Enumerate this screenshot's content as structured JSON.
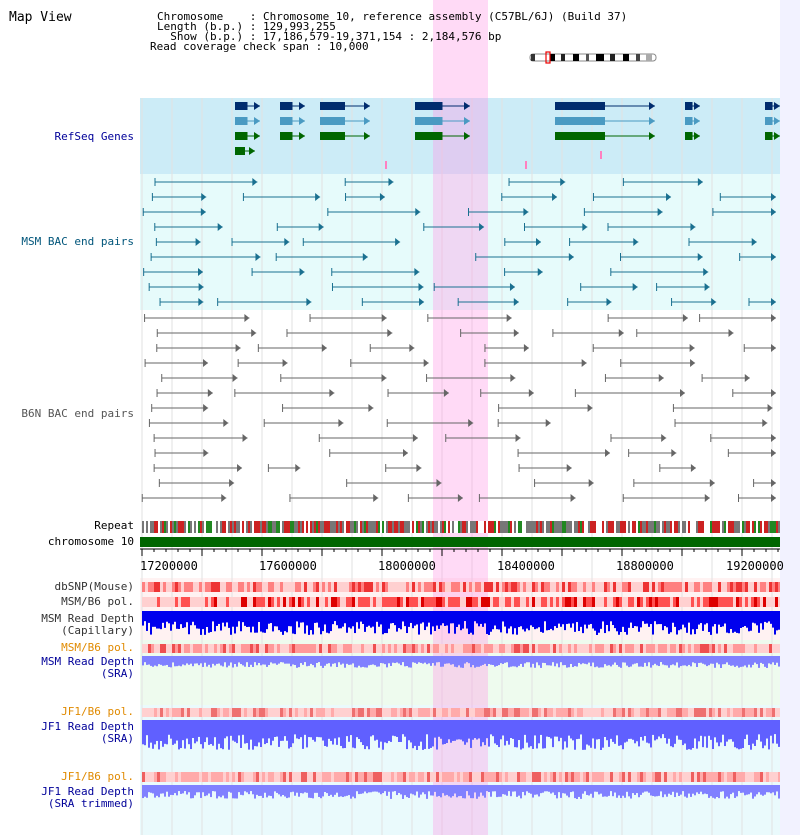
{
  "header": {
    "title": "Map View",
    "chromosome_label": "Chromosome",
    "chromosome_value": "Chromosome 10, reference assembly (C57BL/6J) (Build 37)",
    "length_label": "Length (b.p.)",
    "length_value": "129,993,255",
    "show_label": "Show (b.p.)",
    "show_value": "17,186,579-19,371,154 : 2,184,576 bp",
    "coverage_label": "Read coverage check span",
    "coverage_value": "10,000"
  },
  "tracks": {
    "refseq": "RefSeq Genes",
    "msm_bac": "MSM BAC end pairs",
    "b6n_bac": "B6N BAC end pairs",
    "repeat": "Repeat",
    "chromosome": "chromosome 10",
    "dbsnp": "dbSNP(Mouse)",
    "msm_b6_pol": "MSM/B6 pol.",
    "msm_read_depth_line1": "MSM Read Depth",
    "msm_read_depth_line2": "(Capillary)",
    "msm_b6_pol_sra": "MSM/B6 pol.",
    "msm_read_depth_sra_line1": "MSM Read Depth",
    "msm_read_depth_sra_line2": "(SRA)",
    "jf1_b6_pol": "JF1/B6 pol.",
    "jf1_read_depth_line1": "JF1 Read Depth",
    "jf1_read_depth_line2": "(SRA)",
    "jf1_b6_pol_trim": "JF1/B6 pol.",
    "jf1_read_depth_trim_line1": "JF1 Read Depth",
    "jf1_read_depth_trim_line2": "(SRA trimmed)"
  },
  "ruler": {
    "ticks": [
      "17200000",
      "17600000",
      "18000000",
      "18400000",
      "18800000",
      "19200000"
    ]
  },
  "colors": {
    "refseq_bg": "#ccecf7",
    "msm_bg": "#e8fbfb",
    "b6n_bg": "#ffffff",
    "highlight": "#ffb3ec",
    "msm_label": "#00557a",
    "refseq_label": "#000099",
    "b6n_label": "#555555",
    "orange_label": "#e08a00",
    "blue_label": "#000099",
    "chrom_bar": "#006600",
    "depth_dark": "#0000ee",
    "depth_light": "#8080ff"
  }
}
